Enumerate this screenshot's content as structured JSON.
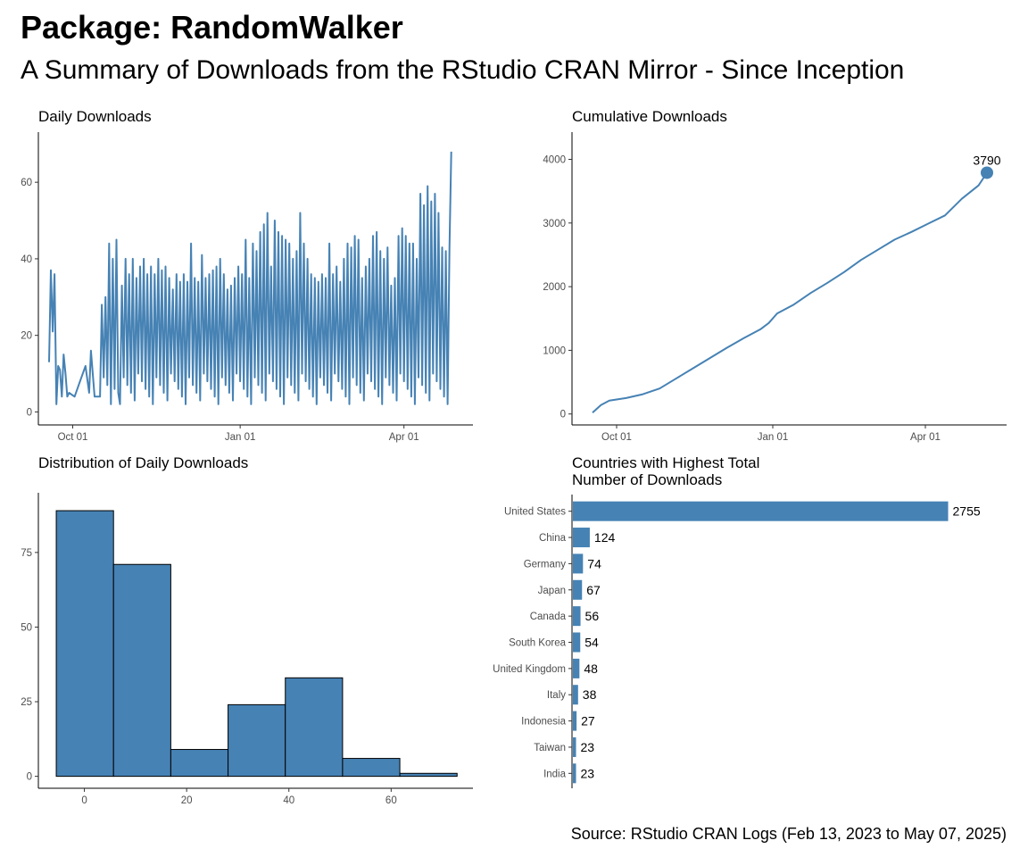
{
  "header": {
    "title": "Package: RandomWalker",
    "subtitle": "A Summary of Downloads from the RStudio CRAN Mirror - Since Inception",
    "caption": "Source: RStudio CRAN Logs (Feb 13, 2023 to May 07, 2025)"
  },
  "colors": {
    "accent": "#4682B4",
    "axis": "#000000",
    "tick_text": "#4d4d4d"
  },
  "chart_data": [
    {
      "id": "daily",
      "type": "line",
      "title": "Daily Downloads",
      "xlabel": "",
      "ylabel": "",
      "x_ticks": [
        "Oct 01",
        "Jan 01",
        "Apr 01"
      ],
      "x_tick_positions": [
        13,
        105,
        195
      ],
      "x_range": [
        0,
        228
      ],
      "y_ticks": [
        0,
        20,
        40,
        60
      ],
      "ylim": [
        -2,
        71
      ],
      "note_x_units": "days since Sep 18",
      "keypoints": [
        [
          0,
          13
        ],
        [
          1,
          37
        ],
        [
          2,
          21
        ],
        [
          3,
          36
        ],
        [
          4,
          2
        ],
        [
          5,
          12
        ],
        [
          6,
          11
        ],
        [
          7,
          4
        ],
        [
          8,
          15
        ],
        [
          9,
          10
        ],
        [
          10,
          4
        ],
        [
          11,
          5
        ],
        [
          14,
          4
        ],
        [
          17,
          8
        ],
        [
          20,
          12
        ],
        [
          22,
          5
        ],
        [
          23,
          16
        ],
        [
          25,
          4
        ],
        [
          28,
          4
        ],
        [
          29,
          28
        ],
        [
          31,
          30
        ],
        [
          32,
          7
        ],
        [
          33,
          44
        ],
        [
          34,
          2
        ],
        [
          35,
          40
        ],
        [
          36,
          6
        ],
        [
          37,
          45
        ],
        [
          38,
          5
        ],
        [
          40,
          33
        ],
        [
          42,
          40
        ],
        [
          44,
          36
        ],
        [
          46,
          40
        ],
        [
          48,
          35
        ],
        [
          50,
          38
        ],
        [
          52,
          40
        ],
        [
          54,
          36
        ],
        [
          56,
          38
        ],
        [
          58,
          36
        ],
        [
          60,
          40
        ],
        [
          62,
          37
        ],
        [
          64,
          38
        ],
        [
          66,
          35
        ],
        [
          68,
          32
        ],
        [
          70,
          36
        ],
        [
          72,
          34
        ],
        [
          74,
          36
        ],
        [
          76,
          34
        ],
        [
          78,
          44
        ],
        [
          80,
          35
        ],
        [
          82,
          34
        ],
        [
          84,
          41
        ],
        [
          86,
          35
        ],
        [
          88,
          36
        ],
        [
          90,
          37
        ],
        [
          92,
          38
        ],
        [
          94,
          40
        ],
        [
          96,
          36
        ],
        [
          98,
          32
        ],
        [
          100,
          33
        ],
        [
          102,
          35
        ],
        [
          104,
          38
        ],
        [
          106,
          36
        ],
        [
          108,
          45
        ],
        [
          110,
          35
        ],
        [
          112,
          44
        ],
        [
          114,
          42
        ],
        [
          116,
          47
        ],
        [
          118,
          49
        ],
        [
          120,
          52
        ],
        [
          122,
          38
        ],
        [
          124,
          50
        ],
        [
          126,
          47
        ],
        [
          128,
          46
        ],
        [
          130,
          45
        ],
        [
          132,
          44
        ],
        [
          134,
          40
        ],
        [
          136,
          42
        ],
        [
          138,
          52
        ],
        [
          140,
          44
        ],
        [
          142,
          40
        ],
        [
          144,
          36
        ],
        [
          146,
          35
        ],
        [
          148,
          34
        ],
        [
          150,
          36
        ],
        [
          152,
          35
        ],
        [
          154,
          44
        ],
        [
          156,
          36
        ],
        [
          158,
          38
        ],
        [
          160,
          34
        ],
        [
          162,
          40
        ],
        [
          164,
          44
        ],
        [
          166,
          43
        ],
        [
          168,
          46
        ],
        [
          170,
          45
        ],
        [
          172,
          35
        ],
        [
          174,
          38
        ],
        [
          176,
          40
        ],
        [
          178,
          46
        ],
        [
          180,
          47
        ],
        [
          182,
          42
        ],
        [
          184,
          40
        ],
        [
          186,
          43
        ],
        [
          188,
          33
        ],
        [
          190,
          35
        ],
        [
          192,
          46
        ],
        [
          194,
          48
        ],
        [
          196,
          46
        ],
        [
          198,
          44
        ],
        [
          200,
          44
        ],
        [
          202,
          40
        ],
        [
          204,
          57
        ],
        [
          206,
          54
        ],
        [
          208,
          59
        ],
        [
          210,
          55
        ],
        [
          212,
          57
        ],
        [
          214,
          52
        ],
        [
          216,
          43
        ],
        [
          218,
          42
        ],
        [
          220,
          43
        ],
        [
          221,
          68
        ]
      ]
    },
    {
      "id": "cumulative",
      "type": "line",
      "title": "Cumulative Downloads",
      "xlabel": "",
      "ylabel": "",
      "x_ticks": [
        "Oct 01",
        "Jan 01",
        "Apr 01"
      ],
      "x_tick_positions": [
        13,
        105,
        195
      ],
      "x_range": [
        0,
        228
      ],
      "y_ticks": [
        0,
        1000,
        2000,
        3000,
        4000
      ],
      "ylim": [
        -130,
        4540
      ],
      "series": [
        {
          "values_xy": [
            [
              0,
              20
            ],
            [
              5,
              140
            ],
            [
              10,
              210
            ],
            [
              20,
              250
            ],
            [
              30,
              310
            ],
            [
              40,
              400
            ],
            [
              50,
              560
            ],
            [
              60,
              720
            ],
            [
              70,
              880
            ],
            [
              80,
              1040
            ],
            [
              90,
              1190
            ],
            [
              100,
              1330
            ],
            [
              105,
              1430
            ],
            [
              110,
              1580
            ],
            [
              120,
              1720
            ],
            [
              130,
              1900
            ],
            [
              140,
              2060
            ],
            [
              150,
              2230
            ],
            [
              160,
              2420
            ],
            [
              170,
              2580
            ],
            [
              180,
              2740
            ],
            [
              190,
              2860
            ],
            [
              200,
              2990
            ],
            [
              210,
              3120
            ],
            [
              220,
              3380
            ],
            [
              230,
              3590
            ],
            [
              235,
              3790
            ]
          ]
        }
      ],
      "end_label": "3790"
    },
    {
      "id": "histogram",
      "type": "bar",
      "title": "Distribution of Daily Downloads",
      "xlabel": "",
      "ylabel": "",
      "x_ticks": [
        0,
        20,
        40,
        60
      ],
      "y_ticks": [
        0,
        25,
        50,
        75
      ],
      "xlim": [
        -9,
        76
      ],
      "ylim": [
        -4,
        95
      ],
      "bins": [
        {
          "from": -5.5,
          "to": 5.7,
          "count": 89
        },
        {
          "from": 5.7,
          "to": 16.9,
          "count": 71
        },
        {
          "from": 16.9,
          "to": 28.1,
          "count": 9
        },
        {
          "from": 28.1,
          "to": 39.3,
          "count": 24
        },
        {
          "from": 39.3,
          "to": 50.5,
          "count": 33
        },
        {
          "from": 50.5,
          "to": 61.7,
          "count": 6
        },
        {
          "from": 61.7,
          "to": 72.9,
          "count": 1
        }
      ]
    },
    {
      "id": "countries",
      "type": "bar",
      "orientation": "horizontal",
      "title": "Countries with Highest Total\nNumber of Downloads",
      "xlabel": "",
      "ylabel": "",
      "xlim": [
        0,
        3040
      ],
      "categories": [
        "United States",
        "China",
        "Germany",
        "Japan",
        "Canada",
        "South Korea",
        "United Kingdom",
        "Italy",
        "Indonesia",
        "Taiwan",
        "India"
      ],
      "values": [
        2755,
        124,
        74,
        67,
        56,
        54,
        48,
        38,
        27,
        23,
        23
      ]
    }
  ]
}
